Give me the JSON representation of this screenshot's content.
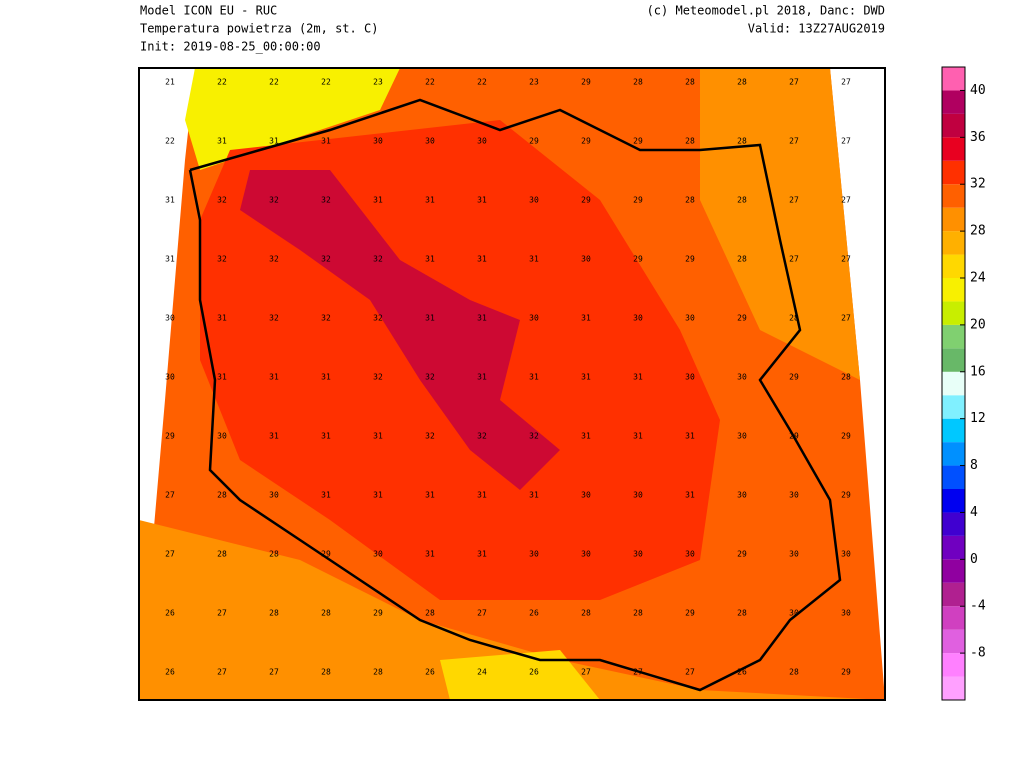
{
  "header": {
    "left": [
      "Model ICON EU - RUC",
      "Temperatura powietrza (2m, st. C)",
      "Init: 2019-08-25_00:00:00"
    ],
    "right": [
      "(c) Meteomodel.pl 2018, Danc: DWD",
      "Valid: 13Z27AUG2019"
    ]
  },
  "map": {
    "values": [
      [
        21,
        22,
        22,
        22,
        23,
        22,
        22,
        23,
        29,
        28,
        28,
        28,
        27,
        27
      ],
      [
        22,
        31,
        31,
        31,
        30,
        30,
        30,
        29,
        29,
        29,
        28,
        28,
        27,
        27
      ],
      [
        31,
        32,
        32,
        32,
        31,
        31,
        31,
        30,
        29,
        29,
        28,
        28,
        27,
        27
      ],
      [
        31,
        32,
        32,
        32,
        32,
        31,
        31,
        31,
        30,
        29,
        29,
        28,
        27,
        27
      ],
      [
        30,
        31,
        32,
        32,
        32,
        31,
        31,
        30,
        31,
        30,
        30,
        29,
        28,
        27
      ],
      [
        30,
        31,
        31,
        31,
        32,
        32,
        31,
        31,
        31,
        31,
        30,
        30,
        29,
        28
      ],
      [
        29,
        30,
        31,
        31,
        31,
        32,
        32,
        32,
        31,
        31,
        31,
        30,
        29,
        29
      ],
      [
        27,
        28,
        30,
        31,
        31,
        31,
        31,
        31,
        30,
        30,
        31,
        30,
        30,
        29
      ],
      [
        27,
        28,
        28,
        29,
        30,
        31,
        31,
        30,
        30,
        30,
        30,
        29,
        30,
        30
      ],
      [
        26,
        27,
        28,
        28,
        29,
        28,
        27,
        26,
        28,
        28,
        29,
        28,
        30,
        30
      ],
      [
        26,
        27,
        27,
        28,
        28,
        26,
        24,
        26,
        27,
        27,
        27,
        26,
        28,
        29
      ]
    ]
  },
  "colorbar": {
    "ylim": [
      -12,
      42
    ],
    "bounds": [
      -12,
      -10,
      -8,
      -6,
      -4,
      -2,
      0,
      2,
      4,
      6,
      8,
      10,
      12,
      14,
      16,
      18,
      20,
      22,
      24,
      26,
      28,
      30,
      32,
      34,
      36,
      38,
      40,
      42
    ],
    "colors": [
      "#ffa0ff",
      "#ff80ff",
      "#e060e0",
      "#d040c0",
      "#b02090",
      "#9000a0",
      "#7000c0",
      "#4000d0",
      "#0000f0",
      "#0050ff",
      "#0090ff",
      "#00c8ff",
      "#80f0ff",
      "#e8fff8",
      "#68b868",
      "#80d070",
      "#c8ee00",
      "#f8f000",
      "#ffd800",
      "#ffb000",
      "#ff9000",
      "#ff6000",
      "#ff3000",
      "#e80020",
      "#c00040",
      "#b00060",
      "#ff60b0"
    ],
    "ticks": [
      40,
      36,
      32,
      28,
      24,
      20,
      16,
      12,
      8,
      4,
      0,
      -4,
      -8
    ]
  }
}
